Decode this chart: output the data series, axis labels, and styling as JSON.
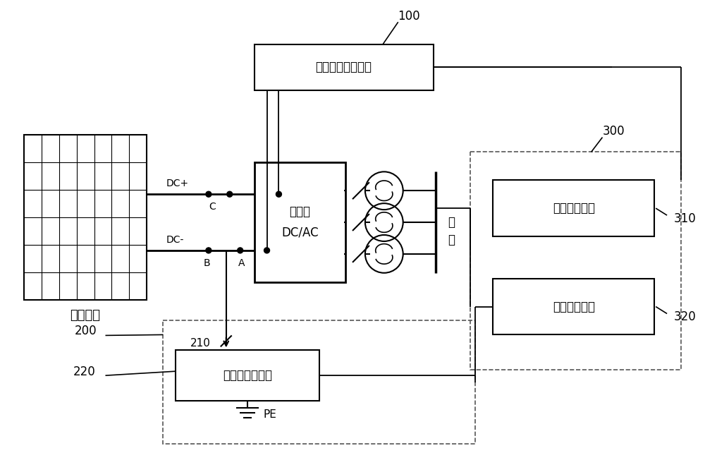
{
  "bg_color": "#ffffff",
  "labels": {
    "pv_array": "光伏阵列",
    "insulation": "绝缘电阻检测单元",
    "inverter_line1": "逆变器",
    "inverter_line2": "DC/AC",
    "grid_line1": "电",
    "grid_line2": "网",
    "leakage": "漏电流检测装置",
    "ctrl1": "第一控制单元",
    "ctrl2": "第二控制单元",
    "pe": "PE",
    "dc_plus": "DC+",
    "dc_minus": "DC-",
    "node_b": "B",
    "node_a": "A",
    "node_c": "C",
    "node_210": "210",
    "ref_100": "100",
    "ref_200": "200",
    "ref_220": "220",
    "ref_300": "300",
    "ref_310": "310",
    "ref_320": "320"
  }
}
